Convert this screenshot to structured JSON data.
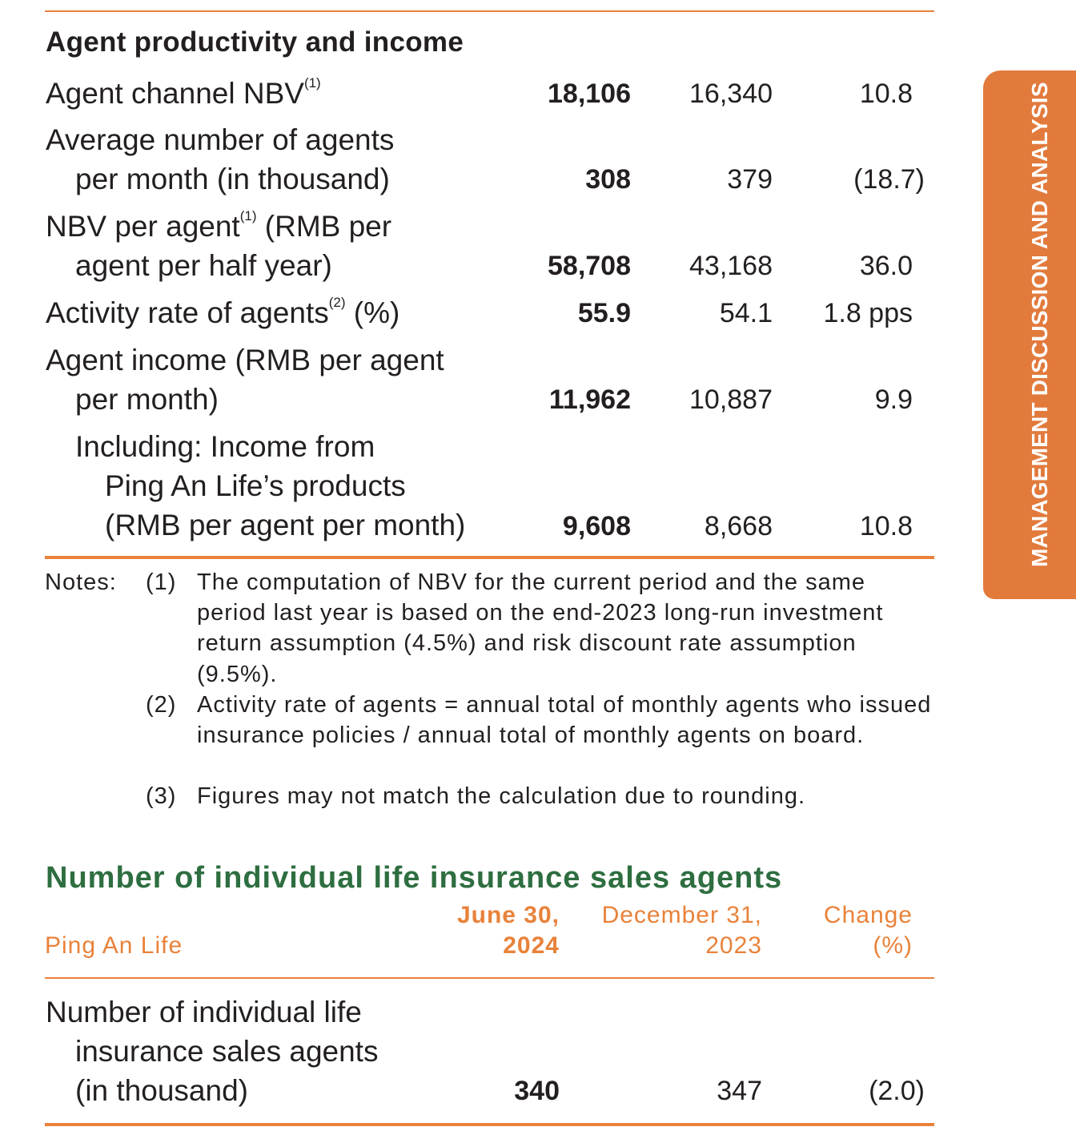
{
  "side_tab": {
    "text": "MANAGEMENT DISCUSSION AND ANALYSIS"
  },
  "section1": {
    "title": "Agent productivity and income",
    "rows": [
      {
        "label_lines": [
          "Agent channel NBV"
        ],
        "sup": "(1)",
        "values": [
          "18,106",
          "16,340",
          "10.8"
        ]
      },
      {
        "label_lines": [
          "Average number of agents",
          "per month (in thousand)"
        ],
        "values": [
          "308",
          "379",
          "(18.7)"
        ]
      },
      {
        "label_lines": [
          "NBV per agent",
          "agent per half year)"
        ],
        "sup": "(1)",
        "label_suffix": " (RMB per",
        "values": [
          "58,708",
          "43,168",
          "36.0"
        ]
      },
      {
        "label_lines": [
          "Activity rate of agents"
        ],
        "sup": "(2)",
        "label_suffix": " (%)",
        "values": [
          "55.9",
          "54.1",
          "1.8 pps"
        ]
      },
      {
        "label_lines": [
          "Agent income (RMB per agent",
          "per month)"
        ],
        "values": [
          "11,962",
          "10,887",
          "9.9"
        ]
      },
      {
        "label_lines": [
          "Including: Income from",
          "Ping An Life’s products",
          "(RMB per agent per month)"
        ],
        "values": [
          "9,608",
          "8,668",
          "10.8"
        ]
      }
    ],
    "notes": {
      "prefix": "Notes:",
      "items": [
        {
          "num": "(1)",
          "text": "The computation of NBV for the current period and the same period last year is based on the end-2023 long-run investment return assumption (4.5%) and risk discount rate assumption (9.5%)."
        },
        {
          "num": "(2)",
          "text": "Activity rate of agents = annual total of monthly agents who issued insurance policies / annual total of monthly agents on board."
        },
        {
          "num": "(3)",
          "text": "Figures may not match the calculation due to rounding."
        }
      ]
    }
  },
  "section2": {
    "title": "Number of individual life insurance sales agents",
    "header": {
      "entity": "Ping An Life",
      "col1": [
        "June 30,",
        "2024"
      ],
      "col2": [
        "December 31,",
        "2023"
      ],
      "col3": [
        "Change",
        "(%)"
      ]
    },
    "row": {
      "label_lines": [
        "Number of individual life",
        "insurance sales agents",
        "(in thousand)"
      ],
      "values": [
        "340",
        "347",
        "(2.0)"
      ]
    }
  }
}
